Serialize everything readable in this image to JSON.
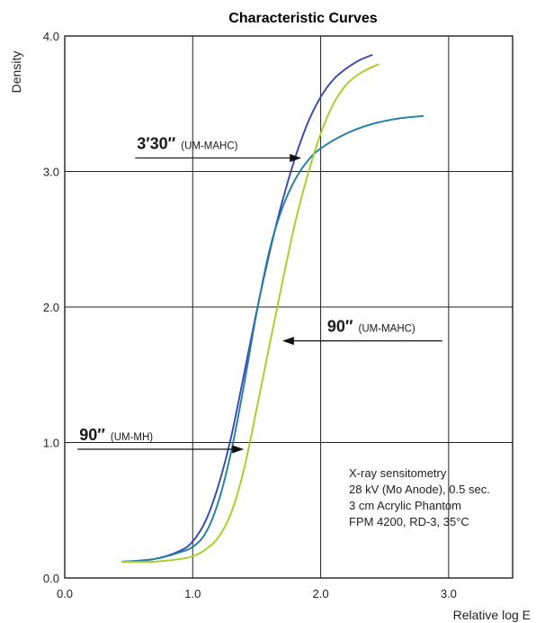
{
  "chart_data": {
    "type": "line",
    "title": "Characteristic Curves",
    "xlabel": "Relative log E",
    "ylabel": "Density",
    "xlim": [
      0.0,
      3.5
    ],
    "ylim": [
      0.0,
      4.0
    ],
    "x_ticks": [
      "0.0",
      "1.0",
      "2.0",
      "3.0"
    ],
    "y_ticks": [
      "0.0",
      "1.0",
      "2.0",
      "3.0",
      "4.0"
    ],
    "grid": true,
    "series": [
      {
        "color": "#3a46b4",
        "x": [
          0.45,
          0.7,
          0.9,
          1.0,
          1.1,
          1.2,
          1.3,
          1.4,
          1.5,
          1.6,
          1.7,
          1.8,
          1.9,
          2.0,
          2.1,
          2.2,
          2.3,
          2.4
        ],
        "y": [
          0.12,
          0.14,
          0.2,
          0.27,
          0.42,
          0.68,
          1.04,
          1.5,
          1.97,
          2.4,
          2.78,
          3.1,
          3.36,
          3.55,
          3.68,
          3.76,
          3.82,
          3.86
        ]
      },
      {
        "color": "#1f7fa6",
        "x": [
          0.45,
          0.7,
          0.9,
          1.0,
          1.1,
          1.2,
          1.3,
          1.4,
          1.5,
          1.6,
          1.7,
          1.8,
          1.9,
          2.0,
          2.2,
          2.4,
          2.6,
          2.8
        ],
        "y": [
          0.12,
          0.14,
          0.19,
          0.23,
          0.33,
          0.56,
          0.93,
          1.42,
          1.96,
          2.42,
          2.73,
          2.94,
          3.08,
          3.17,
          3.28,
          3.35,
          3.39,
          3.41
        ]
      },
      {
        "color": "#a6cf1f",
        "x": [
          0.45,
          0.7,
          0.9,
          1.0,
          1.1,
          1.2,
          1.3,
          1.4,
          1.5,
          1.6,
          1.7,
          1.8,
          1.9,
          2.0,
          2.1,
          2.2,
          2.3,
          2.4,
          2.45
        ],
        "y": [
          0.12,
          0.12,
          0.14,
          0.16,
          0.21,
          0.3,
          0.48,
          0.8,
          1.25,
          1.72,
          2.18,
          2.62,
          2.98,
          3.28,
          3.5,
          3.64,
          3.72,
          3.77,
          3.79
        ]
      }
    ],
    "annotations": [
      {
        "main": "3′30″",
        "sub": "(UM-MAHC)",
        "arrow_x": [
          0.55,
          1.85
        ],
        "y": 3.1
      },
      {
        "main": "90″",
        "sub": "(UM-MAHC)",
        "arrow_x": [
          2.95,
          1.7
        ],
        "y": 1.75
      },
      {
        "main": "90″",
        "sub": "(UM-MH)",
        "arrow_x": [
          0.1,
          1.4
        ],
        "y": 0.95
      }
    ],
    "notes": [
      "X-ray sensitometry",
      "28 kV (Mo Anode), 0.5 sec.",
      "3 cm Acrylic Phantom",
      "FPM 4200, RD-3, 35°C"
    ]
  }
}
